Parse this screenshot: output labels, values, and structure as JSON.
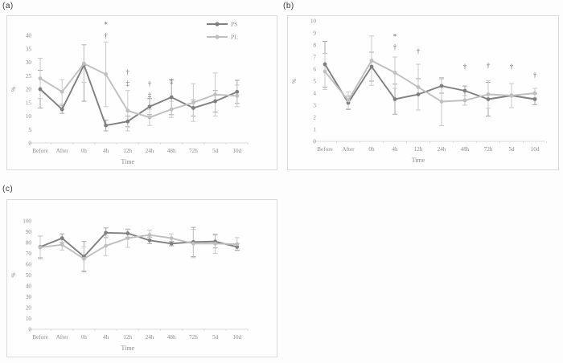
{
  "figure": {
    "background": "#fdfdfd"
  },
  "colors": {
    "ps": "#7f7f7f",
    "pl": "#bfbfbf",
    "ps_error": "#a6a6a6",
    "pl_error": "#c9c9c9",
    "axis_line": "#d9d9d9",
    "tick_text": "#8c8c8c",
    "annotation": "#666666",
    "panel_border": "#d9d9d9",
    "panel_label": "#383838"
  },
  "chart_data": [
    {
      "panel": "(a)",
      "type": "line",
      "title": "",
      "xlabel": "Time",
      "ylabel": "%",
      "ylim": [
        0,
        40
      ],
      "ytick_step": 5,
      "grid": false,
      "legend_position": "top-right",
      "legend_entries": [
        "PS",
        "PL"
      ],
      "categories": [
        "Before",
        "After",
        "0h",
        "4h",
        "12h",
        "24h",
        "48h",
        "72h",
        "5d",
        "10d"
      ],
      "series": [
        {
          "name": "PS",
          "color_key": "ps",
          "values": [
            20,
            12.5,
            29,
            6.5,
            8,
            13.5,
            17,
            13,
            15.5,
            19
          ],
          "errors": [
            7,
            1.5,
            [
              7.5,
              13.5
            ],
            2,
            2,
            3,
            6.5,
            3,
            4,
            4.3
          ]
        },
        {
          "name": "PL",
          "color_key": "pl",
          "values": [
            24,
            19,
            29.5,
            25.5,
            12,
            9.5,
            12.5,
            15,
            18,
            17.5
          ],
          "errors": [
            7.5,
            4.5,
            7,
            12,
            7.5,
            3,
            3,
            7,
            8,
            4
          ]
        }
      ],
      "annotations": [
        {
          "index": 3,
          "symbols": [
            "*",
            "†"
          ],
          "top": 44
        },
        {
          "index": 4,
          "symbols": [
            "†",
            "‡"
          ],
          "top": 26.3
        },
        {
          "index": 5,
          "symbols": [
            "†",
            "‡"
          ],
          "top": 22
        },
        {
          "index": 6,
          "symbols": [
            "‡"
          ],
          "top": 23
        }
      ]
    },
    {
      "panel": "(b)",
      "type": "line",
      "title": "",
      "xlabel": "Time",
      "ylabel": "%",
      "ylim": [
        0,
        10
      ],
      "ytick_step": 1,
      "grid": false,
      "legend_position": "none",
      "legend_entries": [],
      "categories": [
        "Before",
        "After",
        "0h",
        "4h",
        "12h",
        "24h",
        "48h",
        "72h",
        "5d",
        "10d"
      ],
      "series": [
        {
          "name": "PS",
          "color_key": "ps",
          "values": [
            6.4,
            3.2,
            6.2,
            3.5,
            3.9,
            4.6,
            4.2,
            3.5,
            3.8,
            3.5
          ],
          "errors": [
            1.9,
            0.55,
            1.2,
            1.25,
            1.3,
            0.6,
            0.4,
            1.4,
            1.0,
            0.45
          ]
        },
        {
          "name": "PL",
          "color_key": "pl",
          "values": [
            5.8,
            3.4,
            6.7,
            5.7,
            4.5,
            3.3,
            3.4,
            3.9,
            3.8,
            4.0
          ],
          "errors": [
            1.5,
            0.7,
            2.05,
            1.3,
            1.9,
            2.0,
            0.4,
            1.15,
            1.0,
            0.4
          ]
        }
      ],
      "annotations": [
        {
          "index": 3,
          "symbols": [
            "*",
            "†"
          ],
          "top": 8.7
        },
        {
          "index": 4,
          "symbols": [
            "†"
          ],
          "top": 7.5
        },
        {
          "index": 6,
          "symbols": [
            "†"
          ],
          "top": 6.2
        },
        {
          "index": 7,
          "symbols": [
            "†"
          ],
          "top": 6.3
        },
        {
          "index": 8,
          "symbols": [
            "†"
          ],
          "top": 6.2
        },
        {
          "index": 9,
          "symbols": [
            "†"
          ],
          "top": 5.5
        }
      ]
    },
    {
      "panel": "(c)",
      "type": "line",
      "title": "",
      "xlabel": "Time",
      "ylabel": "%",
      "ylim": [
        0,
        100
      ],
      "ytick_step": 10,
      "grid": false,
      "legend_position": "none",
      "legend_entries": [],
      "categories": [
        "Before",
        "After",
        "0h",
        "4h",
        "12h",
        "24h",
        "48h",
        "72h",
        "5d",
        "10d"
      ],
      "series": [
        {
          "name": "PS",
          "color_key": "ps",
          "values": [
            76,
            84,
            67,
            89,
            88.5,
            82,
            79,
            80.5,
            81,
            76
          ],
          "errors": [
            10,
            4,
            14,
            4.5,
            3.5,
            3,
            2,
            13.5,
            6,
            3
          ]
        },
        {
          "name": "PL",
          "color_key": "pl",
          "values": [
            75.5,
            78,
            65,
            77,
            84,
            87,
            84,
            79,
            79,
            78.5
          ],
          "errors": [
            10.5,
            5,
            11,
            9,
            8.5,
            4.5,
            4,
            13,
            9,
            6
          ]
        }
      ],
      "annotations": []
    }
  ]
}
